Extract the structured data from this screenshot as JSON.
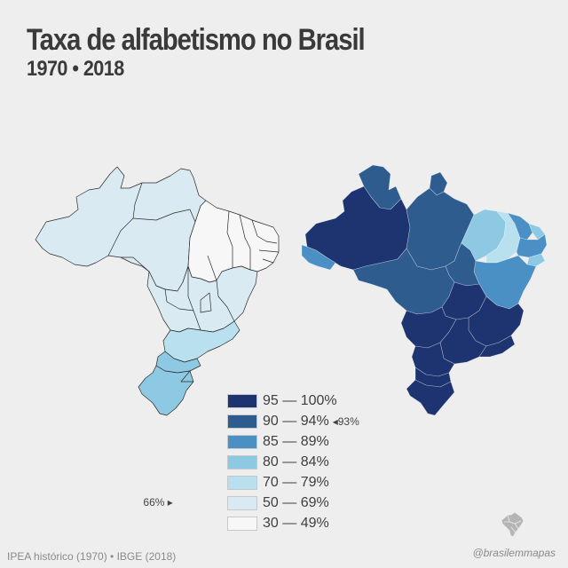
{
  "title": "Taxa de alfabetismo no Brasil",
  "subtitle": "1970 • 2018",
  "colors": {
    "c95_100": "#1e3470",
    "c90_94": "#2e5c8f",
    "c85_89": "#4a90c4",
    "c80_84": "#8ec9e3",
    "c70_79": "#b8e0ef",
    "c50_69": "#daeaf2",
    "c30_49": "#f7f7f7",
    "border": "#2a2a2a"
  },
  "legend": {
    "items": [
      {
        "label": "95 — 100%",
        "color": "#1e3470",
        "marker": ""
      },
      {
        "label": "90 — 94%",
        "color": "#2e5c8f",
        "marker": "◂93%"
      },
      {
        "label": "85 — 89%",
        "color": "#4a90c4",
        "marker": ""
      },
      {
        "label": "80 — 84%",
        "color": "#8ec9e3",
        "marker": ""
      },
      {
        "label": "70 — 79%",
        "color": "#b8e0ef",
        "marker": ""
      },
      {
        "label": "50 — 69%",
        "color": "#daeaf2",
        "marker": ""
      },
      {
        "label": "30 — 49%",
        "color": "#f7f7f7",
        "marker": ""
      }
    ],
    "left_marker": "66% ▸"
  },
  "source": "IPEA histórico (1970) • IBGE (2018)",
  "handle": "@brasilemmapas",
  "logo_icon": "brazil-map-logo-icon"
}
